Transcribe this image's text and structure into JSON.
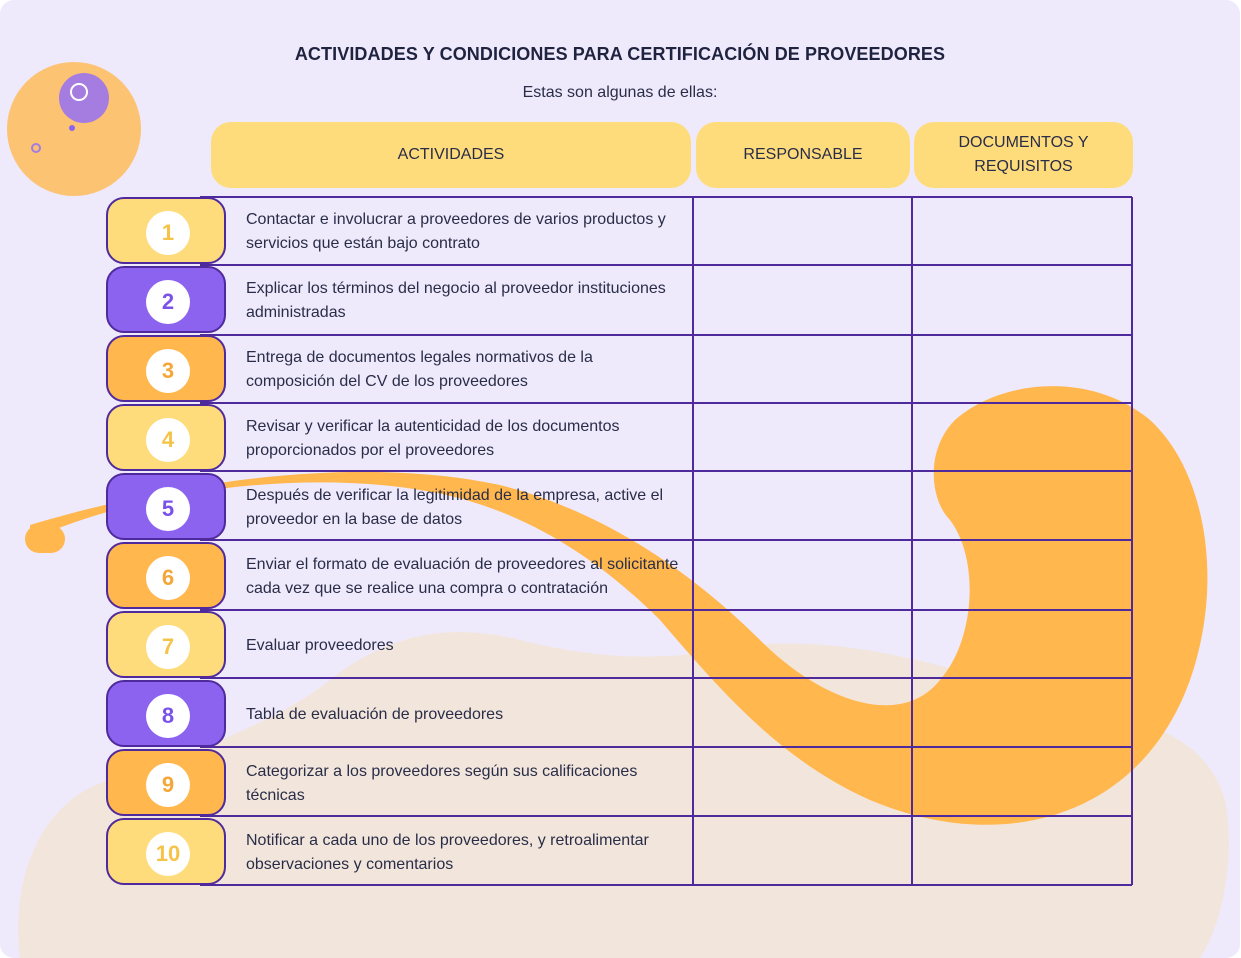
{
  "title": "ACTIVIDADES Y CONDICIONES PARA CERTIFICACIÓN DE PROVEEDORES",
  "subtitle": "Estas son algunas de ellas:",
  "headers": {
    "activities": "ACTIVIDADES",
    "responsible": "RESPONSABLE",
    "documents": "DOCUMENTOS Y REQUISITOS"
  },
  "colors": {
    "background": "#eee9fb",
    "header_fill": "#fedc7c",
    "grid_line": "#4f2a9c",
    "yellow": "#fedc7c",
    "purple": "#8b63ef",
    "orange": "#ffb74e"
  },
  "rows": [
    {
      "num": "1",
      "text": "Contactar e involucrar a proveedores de varios productos y servicios que están bajo contrato",
      "responsible": "",
      "documents": "",
      "color": "#fedc7c",
      "num_color": "#f5c348"
    },
    {
      "num": "2",
      "text": "Explicar los términos del negocio al proveedor instituciones administradas",
      "responsible": "",
      "documents": "",
      "color": "#8b63ef",
      "num_color": "#7b52e8"
    },
    {
      "num": "3",
      "text": "Entrega de documentos legales normativos de la composición del CV de los proveedores",
      "responsible": "",
      "documents": "",
      "color": "#ffb74e",
      "num_color": "#f5a638"
    },
    {
      "num": "4",
      "text": "Revisar y verificar la autenticidad de los documentos proporcionados por el proveedores",
      "responsible": "",
      "documents": "",
      "color": "#fedc7c",
      "num_color": "#f5c348"
    },
    {
      "num": "5",
      "text": "Después de verificar la legitimidad de la empresa, active el proveedor en la base de datos",
      "responsible": "",
      "documents": "",
      "color": "#8b63ef",
      "num_color": "#7b52e8"
    },
    {
      "num": "6",
      "text": "Enviar el formato de evaluación de proveedores al solicitante cada vez que se realice una compra o contratación",
      "responsible": "",
      "documents": "",
      "color": "#ffb74e",
      "num_color": "#f5a638"
    },
    {
      "num": "7",
      "text": "Evaluar proveedores",
      "responsible": "",
      "documents": "",
      "color": "#fedc7c",
      "num_color": "#f5c348"
    },
    {
      "num": "8",
      "text": "Tabla de evaluación de proveedores",
      "responsible": "",
      "documents": "",
      "color": "#8b63ef",
      "num_color": "#7b52e8"
    },
    {
      "num": "9",
      "text": "Categorizar a los proveedores según sus calificaciones técnicas",
      "responsible": "",
      "documents": "",
      "color": "#ffb74e",
      "num_color": "#f5a638"
    },
    {
      "num": "10",
      "text": "Notificar a cada uno de los proveedores, y retroalimentar observaciones y comentarios",
      "responsible": "",
      "documents": "",
      "color": "#fedc7c",
      "num_color": "#f5c348"
    }
  ]
}
